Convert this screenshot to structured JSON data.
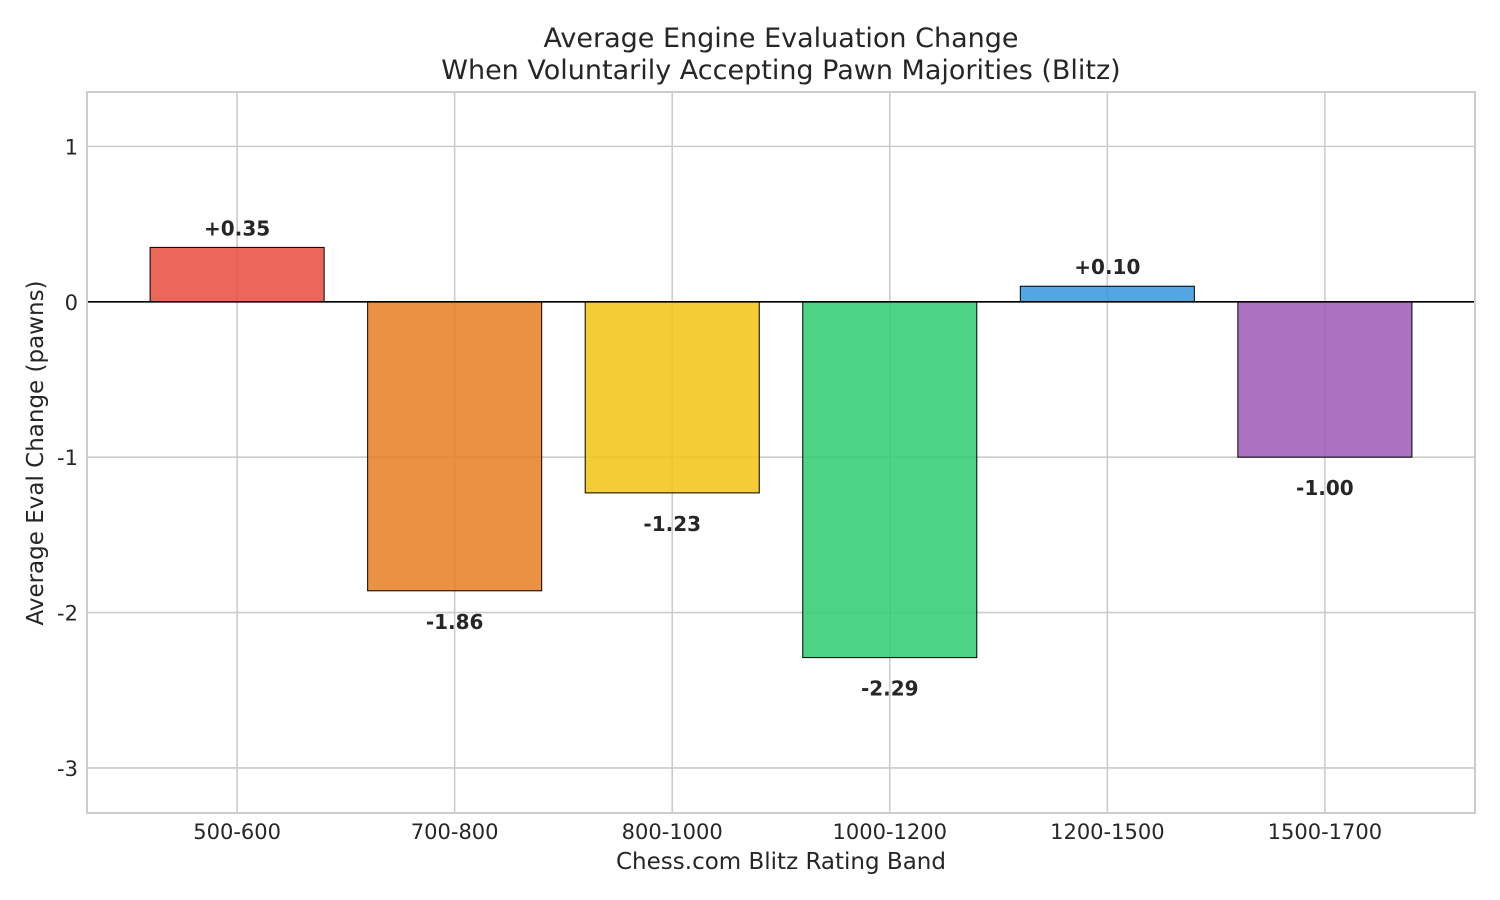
{
  "chart_data": {
    "type": "bar",
    "title_line1": "Average Engine Evaluation Change",
    "title_line2": "When Voluntarily Accepting Pawn Majorities (Blitz)",
    "xlabel": "Chess.com Blitz Rating Band",
    "ylabel": "Average Eval Change (pawns)",
    "categories": [
      "500-600",
      "700-800",
      "800-1000",
      "1000-1200",
      "1200-1500",
      "1500-1700"
    ],
    "values": [
      0.35,
      -1.86,
      -1.23,
      -2.29,
      0.1,
      -1.0
    ],
    "value_labels": [
      "+0.35",
      "-1.86",
      "-1.23",
      "-2.29",
      "+0.10",
      "-1.00"
    ],
    "colors": [
      "#e74c3c",
      "#e67e22",
      "#f1c40f",
      "#2ecc71",
      "#3498db",
      "#9b59b6"
    ],
    "ylim": [
      -3.29,
      1.35
    ],
    "yticks": [
      1,
      0,
      -1,
      -2,
      -3
    ],
    "ytick_labels": [
      "1",
      "0",
      "-1",
      "-2",
      "-3"
    ],
    "grid": true,
    "zero_line": true
  }
}
